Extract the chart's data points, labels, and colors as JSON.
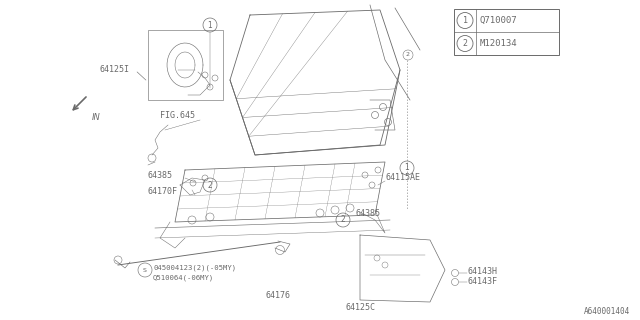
{
  "bg_color": "#ffffff",
  "line_color": "#6a6a6a",
  "title_code": "A640001404",
  "legend": [
    {
      "num": "1",
      "code": "Q710007"
    },
    {
      "num": "2",
      "code": "M120134"
    }
  ],
  "figsize": [
    6.4,
    3.2
  ],
  "dpi": 100,
  "xlim": [
    0,
    640
  ],
  "ylim": [
    0,
    320
  ]
}
